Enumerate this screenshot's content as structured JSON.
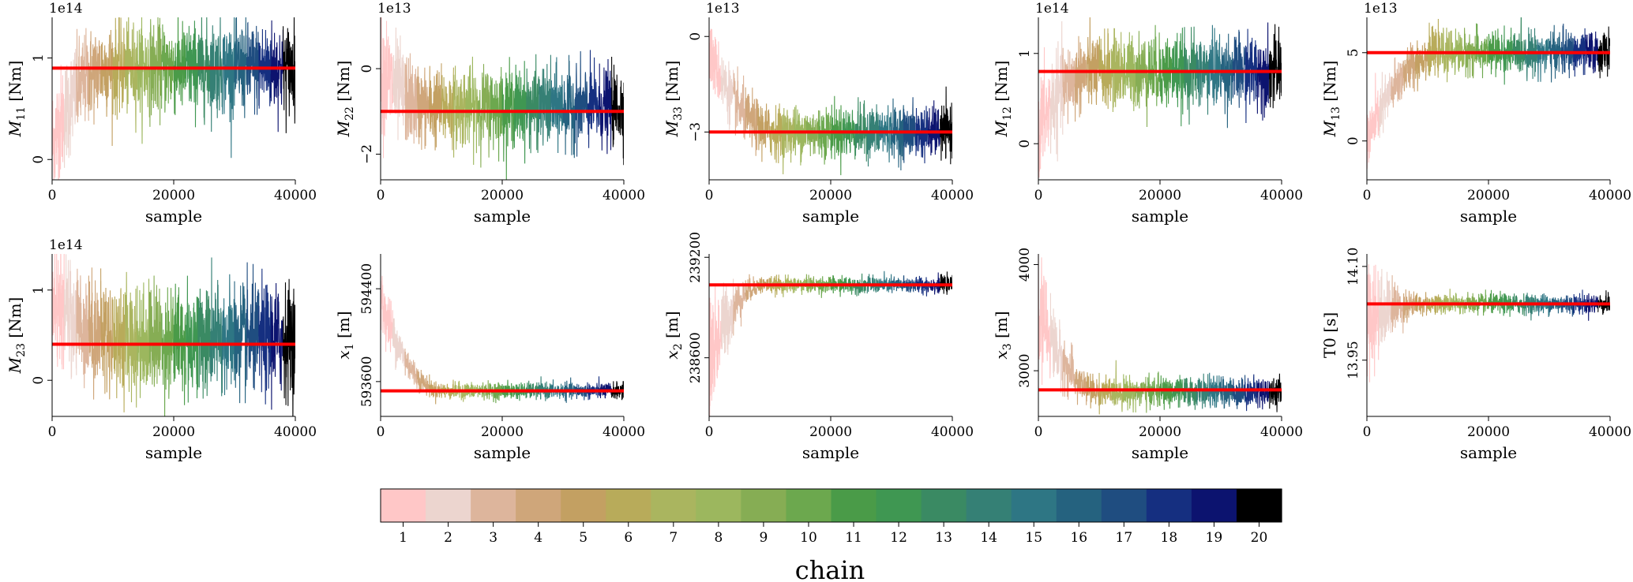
{
  "figure": {
    "colorbar_label": "chain"
  },
  "chart_data": {
    "type": "line",
    "xlabel": "sample",
    "xlim": [
      0,
      40000
    ],
    "xticks": [
      0,
      20000,
      40000
    ],
    "n_chains": 20,
    "chain_colors": [
      "#ffc7c7",
      "#ecd5cf",
      "#ddb59c",
      "#cfa67a",
      "#c3a062",
      "#b8ab5a",
      "#aab55f",
      "#9cb75e",
      "#86ad54",
      "#6ca84e",
      "#4a9b48",
      "#3f9752",
      "#3a8a63",
      "#358075",
      "#2e7684",
      "#25627f",
      "#1f4d80",
      "#152f80",
      "#0c136f",
      "#000000"
    ],
    "panels": [
      {
        "id": "m11",
        "ylabel": "M11 [Nm]",
        "ylabel_base": "M",
        "ylabel_sub": "11",
        "ylabel_unit": "[Nm]",
        "offset_text": "1e14",
        "ylim": [
          -0.2,
          1.4
        ],
        "yticks": [
          0,
          1
        ],
        "ytick_labels": [
          "0",
          "1"
        ],
        "true_value": 0.9,
        "start": 0.15,
        "end": 0.9,
        "burnin": 9000,
        "noise": 0.22,
        "noise_start": 0.3
      },
      {
        "id": "m22",
        "ylabel": "M22 [Nm]",
        "ylabel_base": "M",
        "ylabel_sub": "22",
        "ylabel_unit": "[Nm]",
        "offset_text": "1e13",
        "ylim": [
          -2.6,
          1.2
        ],
        "yticks": [
          0,
          -2
        ],
        "ytick_labels": [
          "0",
          "−2"
        ],
        "true_value": -1.0,
        "start": 0.0,
        "end": -0.9,
        "burnin": 8000,
        "noise": 0.45,
        "noise_start": 0.8
      },
      {
        "id": "m33",
        "ylabel": "M33 [Nm]",
        "ylabel_base": "M",
        "ylabel_sub": "33",
        "ylabel_unit": "[Nm]",
        "offset_text": "1e13",
        "ylim": [
          -4.5,
          0.6
        ],
        "yticks": [
          0,
          -3
        ],
        "ytick_labels": [
          "0",
          "−3"
        ],
        "true_value": -3.0,
        "start": -0.5,
        "end": -3.0,
        "burnin": 11000,
        "noise": 0.4,
        "noise_start": 0.5
      },
      {
        "id": "m12",
        "ylabel": "M12 [Nm]",
        "ylabel_base": "M",
        "ylabel_sub": "12",
        "ylabel_unit": "[Nm]",
        "offset_text": "1e14",
        "ylim": [
          -0.4,
          1.4
        ],
        "yticks": [
          0,
          1
        ],
        "ytick_labels": [
          "0",
          "1"
        ],
        "true_value": 0.8,
        "start": 0.15,
        "end": 0.8,
        "burnin": 9000,
        "noise": 0.2,
        "noise_start": 0.3
      },
      {
        "id": "m13",
        "ylabel": "M13 [Nm]",
        "ylabel_base": "M",
        "ylabel_sub": "13",
        "ylabel_unit": "[Nm]",
        "offset_text": "1e13",
        "ylim": [
          -2.2,
          7.0
        ],
        "yticks": [
          0,
          5
        ],
        "ytick_labels": [
          "0",
          "5"
        ],
        "true_value": 5.0,
        "start": 0.0,
        "end": 5.0,
        "burnin": 12000,
        "noise": 0.6,
        "noise_start": 0.9
      },
      {
        "id": "m23",
        "ylabel": "M23 [Nm]",
        "ylabel_base": "M",
        "ylabel_sub": "23",
        "ylabel_unit": "[Nm]",
        "offset_text": "1e14",
        "ylim": [
          -0.4,
          1.4
        ],
        "yticks": [
          0,
          1
        ],
        "ytick_labels": [
          "0",
          "1"
        ],
        "true_value": 0.4,
        "start": 0.85,
        "end": 0.45,
        "burnin": 14000,
        "noise": 0.3,
        "noise_start": 0.3
      },
      {
        "id": "x1",
        "ylabel": "x1 [m]",
        "ylabel_base": "x",
        "ylabel_sub": "1",
        "ylabel_unit": "[m]",
        "offset_text": "",
        "ylim": [
          593300,
          594700
        ],
        "yticks": [
          593600,
          594400
        ],
        "ytick_labels": [
          "593600",
          "594400"
        ],
        "true_value": 593520,
        "start": 594300,
        "end": 593520,
        "burnin": 10000,
        "noise": 35,
        "noise_start": 150
      },
      {
        "id": "x2",
        "ylabel": "x2 [m]",
        "ylabel_base": "x",
        "ylabel_sub": "2",
        "ylabel_unit": "[m]",
        "offset_text": "",
        "ylim": [
          238250,
          239220
        ],
        "yticks": [
          239200,
          238600
        ],
        "ytick_labels": [
          "239200",
          "238600"
        ],
        "true_value": 239035,
        "start": 238580,
        "end": 239035,
        "burnin": 9000,
        "noise": 25,
        "noise_start": 200
      },
      {
        "id": "x3",
        "ylabel": "x3 [m]",
        "ylabel_base": "x",
        "ylabel_sub": "3",
        "ylabel_unit": "[m]",
        "offset_text": "",
        "ylim": [
          2570,
          4100
        ],
        "yticks": [
          4000,
          3000
        ],
        "ytick_labels": [
          "4000",
          "3000"
        ],
        "true_value": 2820,
        "start": 3600,
        "end": 2800,
        "burnin": 10000,
        "noise": 70,
        "noise_start": 250
      },
      {
        "id": "t0",
        "ylabel": "T0 [s]",
        "ylabel_base": "T0",
        "ylabel_sub": "",
        "ylabel_unit": "[s]",
        "offset_text": "",
        "ylim": [
          13.86,
          14.12
        ],
        "yticks": [
          14.1,
          13.95
        ],
        "ytick_labels": [
          "14.10",
          "13.95"
        ],
        "true_value": 14.04,
        "start": 14.02,
        "end": 14.04,
        "burnin": 10000,
        "noise": 0.008,
        "noise_start": 0.05
      }
    ]
  }
}
